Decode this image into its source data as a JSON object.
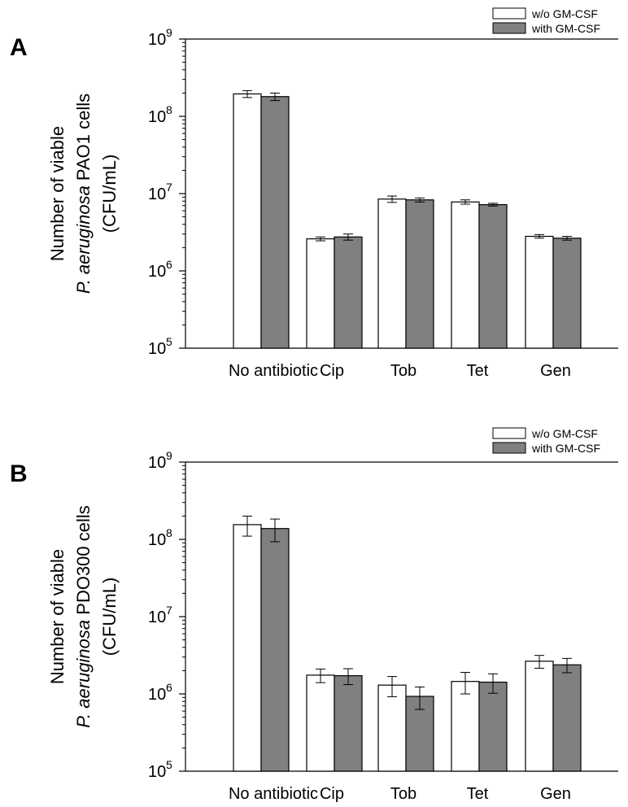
{
  "chart_data": [
    {
      "panel": "A",
      "type": "bar",
      "scale": "log",
      "ylim": [
        100000,
        1000000000
      ],
      "y_ticks": [
        100000,
        1000000,
        10000000,
        100000000,
        1000000000
      ],
      "ylabel_lines": [
        "Number of viable",
        "P. aeruginosa PAO1 cells",
        "(CFU/mL)"
      ],
      "ylabel_italic": "P. aeruginosa",
      "categories": [
        "No antibiotic",
        "Cip",
        "Tob",
        "Tet",
        "Gen"
      ],
      "legend_position": "top-right",
      "series": [
        {
          "name": "w/o GM-CSF",
          "color": "#ffffff",
          "values": [
            195000000,
            2600000,
            8500000,
            7800000,
            2800000
          ],
          "errors": [
            20000000,
            150000,
            800000,
            500000,
            150000
          ]
        },
        {
          "name": "with GM-CSF",
          "color": "#808080",
          "values": [
            180000000,
            2750000,
            8300000,
            7200000,
            2650000
          ],
          "errors": [
            20000000,
            250000,
            500000,
            300000,
            150000
          ]
        }
      ]
    },
    {
      "panel": "B",
      "type": "bar",
      "scale": "log",
      "ylim": [
        100000,
        1000000000
      ],
      "y_ticks": [
        100000,
        1000000,
        10000000,
        100000000,
        1000000000
      ],
      "ylabel_lines": [
        "Number of viable",
        "P. aeruginosa PDO300 cells",
        "(CFU/mL)"
      ],
      "ylabel_italic": "P. aeruginosa",
      "categories": [
        "No antibiotic",
        "Cip",
        "Tob",
        "Tet",
        "Gen"
      ],
      "legend_position": "top-right",
      "series": [
        {
          "name": "w/o GM-CSF",
          "color": "#ffffff",
          "values": [
            155000000,
            1750000,
            1300000,
            1450000,
            2650000
          ],
          "errors": [
            45000000,
            350000,
            380000,
            450000,
            500000
          ]
        },
        {
          "name": "with GM-CSF",
          "color": "#808080",
          "values": [
            138000000,
            1720000,
            930000,
            1420000,
            2380000
          ],
          "errors": [
            45000000,
            400000,
            300000,
            400000,
            500000
          ]
        }
      ]
    }
  ]
}
